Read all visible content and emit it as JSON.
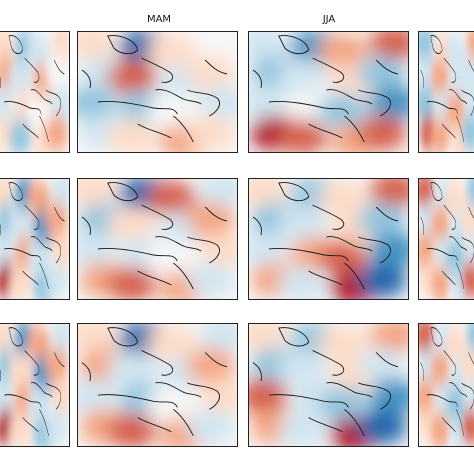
{
  "column_titles": [
    "MAM",
    "JJA"
  ],
  "colors": {
    "strong_red": "#b2182b",
    "red": "#d6604d",
    "light_red": "#f4a582",
    "pale_red": "#fddbc7",
    "neutral": "#f7f7f7",
    "pale_blue": "#d1e5f0",
    "light_blue": "#92c5de",
    "blue": "#4393c3",
    "strong_blue": "#2166ac",
    "coastline": "#1a1a1a"
  },
  "panels": [
    {
      "id": "r1c1",
      "pattern": [
        [
          "pr",
          "lb",
          "pb",
          "pr"
        ],
        [
          "lr",
          "pb",
          "lr",
          "n"
        ],
        [
          "pb",
          "pr",
          "n",
          "pb"
        ],
        [
          "pr",
          "lb",
          "pr",
          "lr"
        ]
      ]
    },
    {
      "id": "r1c2",
      "pattern": [
        [
          "pr",
          "sb",
          "pr",
          "n"
        ],
        [
          "pb",
          "r",
          "pb",
          "pr"
        ],
        [
          "lb",
          "lb",
          "n",
          "pb"
        ],
        [
          "pb",
          "pr",
          "lr",
          "pr"
        ]
      ]
    },
    {
      "id": "r1c3",
      "pattern": [
        [
          "pb",
          "b",
          "lr",
          "r"
        ],
        [
          "lb",
          "pb",
          "pr",
          "lb"
        ],
        [
          "pb",
          "n",
          "lb",
          "b"
        ],
        [
          "sr",
          "r",
          "lr",
          "r"
        ]
      ]
    },
    {
      "id": "r1c4",
      "pattern": [
        [
          "lb",
          "pr",
          "pb",
          "lr"
        ],
        [
          "pb",
          "lr",
          "pb",
          "pb"
        ],
        [
          "lb",
          "pb",
          "lr",
          "pb"
        ],
        [
          "r",
          "lr",
          "pr",
          "lb"
        ]
      ]
    },
    {
      "id": "r2c1",
      "pattern": [
        [
          "pr",
          "b",
          "lr",
          "pb"
        ],
        [
          "lb",
          "pb",
          "b",
          "lr"
        ],
        [
          "pb",
          "lr",
          "pb",
          "pr"
        ],
        [
          "sr",
          "pr",
          "lb",
          "pb"
        ]
      ]
    },
    {
      "id": "r2c2",
      "pattern": [
        [
          "pr",
          "sb",
          "r",
          "pb"
        ],
        [
          "lb",
          "pr",
          "pb",
          "lr"
        ],
        [
          "pb",
          "pb",
          "n",
          "pr"
        ],
        [
          "lr",
          "r",
          "lr",
          "pb"
        ]
      ]
    },
    {
      "id": "r2c3",
      "pattern": [
        [
          "pr",
          "lb",
          "pr",
          "r"
        ],
        [
          "lb",
          "pb",
          "pr",
          "lb"
        ],
        [
          "pb",
          "lr",
          "r",
          "b"
        ],
        [
          "lr",
          "pb",
          "sr",
          "sb"
        ]
      ]
    },
    {
      "id": "r2c4",
      "pattern": [
        [
          "r",
          "pb",
          "pr",
          "lb"
        ],
        [
          "pb",
          "lr",
          "pb",
          "pr"
        ],
        [
          "lr",
          "pb",
          "lb",
          "pb"
        ],
        [
          "pr",
          "lr",
          "pb",
          "r"
        ]
      ]
    },
    {
      "id": "r3c1",
      "pattern": [
        [
          "pr",
          "b",
          "lr",
          "pb"
        ],
        [
          "lb",
          "pr",
          "b",
          "lr"
        ],
        [
          "pb",
          "lr",
          "pb",
          "pr"
        ],
        [
          "sr",
          "pr",
          "lb",
          "pb"
        ]
      ]
    },
    {
      "id": "r3c2",
      "pattern": [
        [
          "pr",
          "sb",
          "pr",
          "pb"
        ],
        [
          "lr",
          "pb",
          "pb",
          "lr"
        ],
        [
          "pb",
          "lb",
          "n",
          "pr"
        ],
        [
          "lr",
          "r",
          "lr",
          "pb"
        ]
      ]
    },
    {
      "id": "r3c3",
      "pattern": [
        [
          "pr",
          "lb",
          "pr",
          "lr"
        ],
        [
          "lb",
          "pb",
          "pr",
          "pb"
        ],
        [
          "r",
          "pb",
          "lb",
          "b"
        ],
        [
          "lr",
          "pb",
          "sr",
          "sb"
        ]
      ]
    },
    {
      "id": "r3c4",
      "pattern": [
        [
          "r",
          "pb",
          "pr",
          "lb"
        ],
        [
          "pb",
          "lr",
          "pb",
          "pr"
        ],
        [
          "lr",
          "pb",
          "lb",
          "pb"
        ],
        [
          "pr",
          "lr",
          "pb",
          "r"
        ]
      ]
    }
  ]
}
